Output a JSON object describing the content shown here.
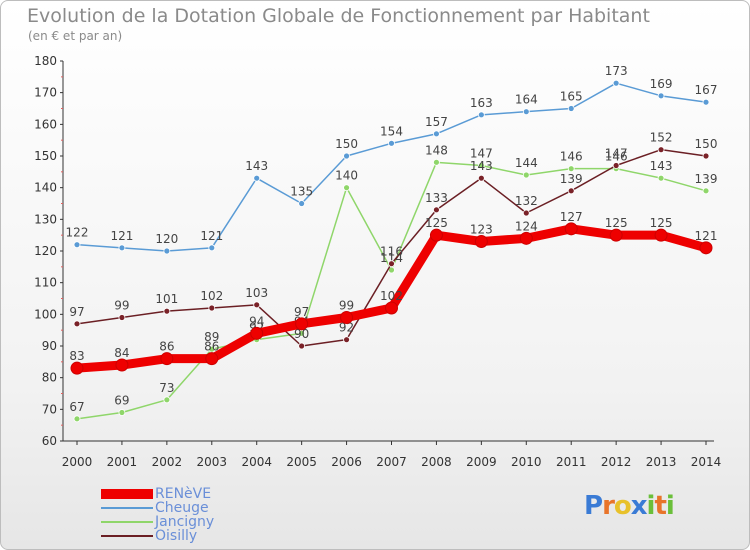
{
  "chart_data": {
    "type": "line",
    "title": "Evolution de la Dotation Globale de Fonctionnement par Habitant",
    "subtitle": "(en € et par an)",
    "x": [
      "2000",
      "2001",
      "2002",
      "2003",
      "2004",
      "2005",
      "2006",
      "2007",
      "2008",
      "2009",
      "2010",
      "2011",
      "2012",
      "2013",
      "2014"
    ],
    "ylim": [
      60,
      180
    ],
    "yticks": [
      60,
      70,
      80,
      90,
      100,
      110,
      120,
      130,
      140,
      150,
      160,
      170,
      180
    ],
    "grid": false,
    "legend_position": "bottom-left",
    "series": [
      {
        "name": "Cheuge",
        "color": "#5a9bd5",
        "marker_fill": "#5a9bd5",
        "values": [
          122,
          121,
          120,
          121,
          143,
          135,
          150,
          154,
          157,
          163,
          164,
          165,
          173,
          169,
          167
        ]
      },
      {
        "name": "Jancigny",
        "color": "#8fd66a",
        "marker_fill": "#8fd66a",
        "values": [
          67,
          69,
          73,
          89,
          92,
          94,
          140,
          114,
          148,
          147,
          144,
          146,
          146,
          143,
          139
        ]
      },
      {
        "name": "Oisilly",
        "color": "#6b1f24",
        "marker_fill": "#7a2228",
        "values": [
          97,
          99,
          101,
          102,
          103,
          90,
          92,
          116,
          133,
          143,
          132,
          139,
          147,
          152,
          150
        ]
      },
      {
        "name": "RENèVE",
        "color": "#ee0000",
        "marker_fill": "#ee0000",
        "values": [
          83,
          84,
          86,
          86,
          94,
          97,
          99,
          102,
          125,
          123,
          124,
          127,
          125,
          125,
          121
        ]
      }
    ],
    "legend_order": [
      "RENèVE",
      "Cheuge",
      "Jancigny",
      "Oisilly"
    ]
  },
  "logo": {
    "text": "Proxiti",
    "colors": [
      "#3a7bd5",
      "#e8742a",
      "#e8c12a",
      "#3a7bd5",
      "#6bbf3a",
      "#e8742a",
      "#6bbf3a"
    ]
  }
}
